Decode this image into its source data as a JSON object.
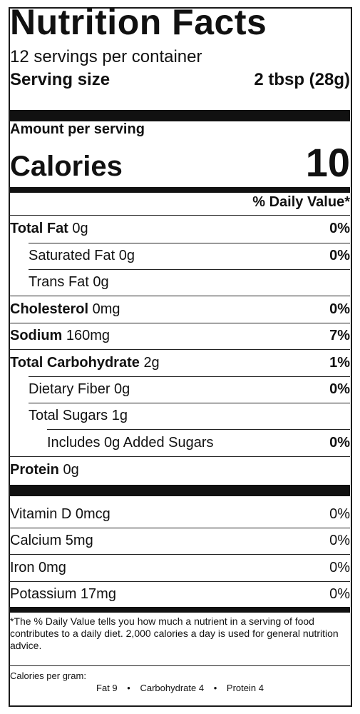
{
  "title": "Nutrition Facts",
  "servings_per_container": "12 servings per container",
  "serving_size": {
    "label": "Serving size",
    "value": "2 tbsp (28g)"
  },
  "amount_per_serving": "Amount per serving",
  "calories": {
    "label": "Calories",
    "value": "10"
  },
  "daily_value_header": "% Daily Value*",
  "nutrients": [
    {
      "name": "Total Fat",
      "amount": "0g",
      "pct": "0%"
    },
    {
      "name": "Saturated Fat",
      "amount": "0g",
      "pct": "0%"
    },
    {
      "name": "Trans Fat",
      "amount": "0g",
      "pct": ""
    },
    {
      "name": "Cholesterol",
      "amount": "0mg",
      "pct": "0%"
    },
    {
      "name": "Sodium",
      "amount": "160mg",
      "pct": "7%"
    },
    {
      "name": "Total Carbohydrate",
      "amount": "2g",
      "pct": "1%"
    },
    {
      "name": "Dietary Fiber",
      "amount": "0g",
      "pct": "0%"
    },
    {
      "name": "Total Sugars",
      "amount": "1g",
      "pct": ""
    },
    {
      "name": "Includes 0g Added Sugars",
      "amount": "",
      "pct": "0%"
    },
    {
      "name": "Protein",
      "amount": "0g",
      "pct": ""
    }
  ],
  "vitamins": [
    {
      "name": "Vitamin D 0mcg",
      "pct": "0%"
    },
    {
      "name": "Calcium 5mg",
      "pct": "0%"
    },
    {
      "name": "Iron 0mg",
      "pct": "0%"
    },
    {
      "name": "Potassium 17mg",
      "pct": "0%"
    }
  ],
  "footnote": "*The % Daily Value tells you how much a nutrient in a serving of food contributes to a daily diet. 2,000 calories a day is used for general nutrition advice.",
  "calories_per_gram": {
    "label": "Calories per gram:",
    "fat": "Fat 9",
    "carbohydrate": "Carbohydrate 4",
    "protein": "Protein 4",
    "separator": "•"
  }
}
